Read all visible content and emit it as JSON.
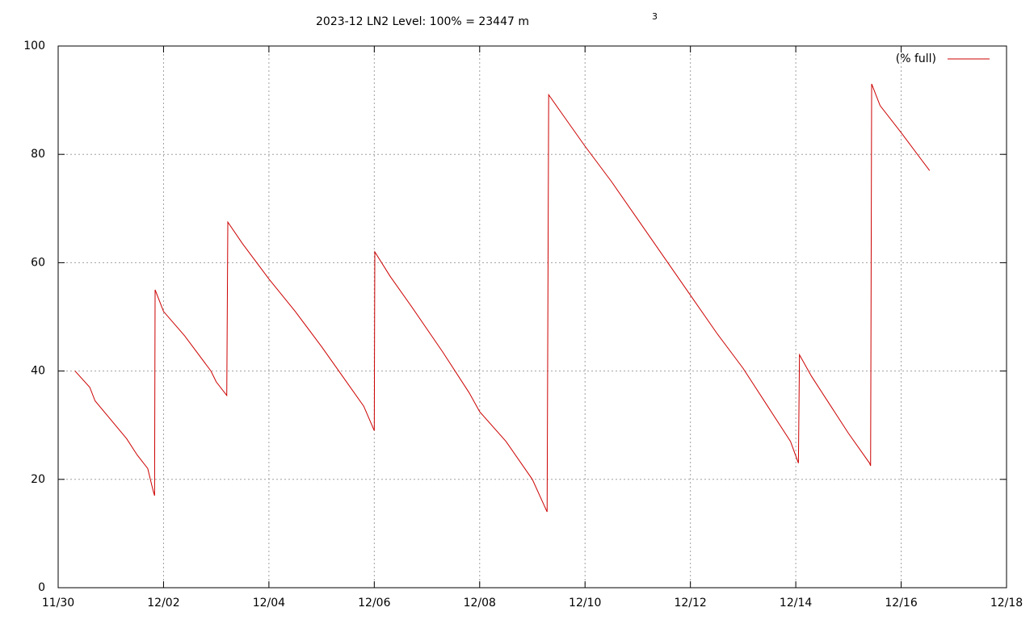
{
  "chart_data": {
    "type": "line",
    "title": "2023-12 LN2 Level: 100% = 23447 m",
    "title_superscript": "3",
    "x": [
      0.32,
      0.6,
      0.7,
      1.0,
      1.3,
      1.5,
      1.7,
      1.8,
      1.83,
      1.84,
      2.0,
      2.4,
      2.9,
      3.0,
      3.2,
      3.22,
      3.5,
      4.0,
      4.5,
      5.0,
      5.4,
      5.8,
      6.0,
      6.01,
      6.3,
      6.7,
      7.3,
      7.8,
      8.0,
      8.5,
      9.0,
      9.28,
      9.31,
      9.6,
      10.0,
      10.5,
      11.0,
      11.5,
      12.0,
      12.5,
      13.0,
      13.5,
      13.9,
      14.05,
      14.07,
      14.3,
      14.7,
      15.0,
      15.4,
      15.42,
      15.44,
      15.6,
      16.0,
      16.54
    ],
    "series": [
      {
        "name": "(% full)",
        "color": "#cc0000",
        "values": [
          40,
          37,
          34.5,
          31,
          27.5,
          24.5,
          22,
          18,
          17,
          55,
          51,
          46.5,
          40,
          38,
          35.5,
          67.5,
          63.5,
          57,
          51,
          44.5,
          39,
          33.5,
          29,
          62,
          57.5,
          52,
          43.5,
          36,
          32.5,
          27,
          20,
          14,
          91,
          87,
          81.5,
          75,
          68,
          61,
          54,
          47,
          40.5,
          33,
          27,
          23,
          43,
          39,
          33,
          28.5,
          23,
          22.5,
          93,
          89,
          84,
          77
        ]
      }
    ],
    "xlim": [
      0,
      18
    ],
    "xticks": [
      {
        "value": 0,
        "label": "11/30"
      },
      {
        "value": 2,
        "label": "12/02"
      },
      {
        "value": 4,
        "label": "12/04"
      },
      {
        "value": 6,
        "label": "12/06"
      },
      {
        "value": 8,
        "label": "12/08"
      },
      {
        "value": 10,
        "label": "12/10"
      },
      {
        "value": 12,
        "label": "12/12"
      },
      {
        "value": 14,
        "label": "12/14"
      },
      {
        "value": 16,
        "label": "12/16"
      },
      {
        "value": 18,
        "label": "12/18"
      }
    ],
    "ylim": [
      0,
      100
    ],
    "yticks": [
      0,
      20,
      40,
      60,
      80,
      100
    ],
    "grid": true,
    "legend": "top-right"
  }
}
